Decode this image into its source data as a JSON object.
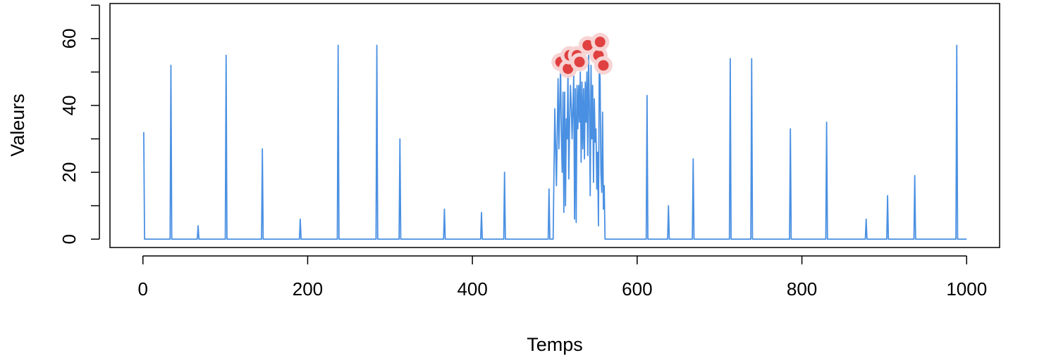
{
  "chart_data": {
    "type": "line",
    "title": "",
    "xlabel": "Temps",
    "ylabel": "Valeurs",
    "xlim": [
      -40,
      1040
    ],
    "ylim": [
      -2.5,
      70.5
    ],
    "xticks": [
      0,
      200,
      400,
      600,
      800,
      1000
    ],
    "yticks": [
      0,
      20,
      40,
      60
    ],
    "yminor_ticks": [
      10,
      30,
      50,
      70
    ],
    "grid": false,
    "colors": {
      "line": "#4A90E2",
      "marker": "#E04040",
      "marker_halo": "#F7D3D3"
    },
    "series": [
      {
        "points": [
          [
            1,
            32
          ],
          [
            2,
            0
          ],
          [
            33,
            0
          ],
          [
            34,
            52
          ],
          [
            35,
            0
          ],
          [
            66,
            0
          ],
          [
            67,
            4
          ],
          [
            68,
            0
          ],
          [
            100,
            0
          ],
          [
            101,
            55
          ],
          [
            102,
            0
          ],
          [
            144,
            0
          ],
          [
            145,
            27
          ],
          [
            146,
            0
          ],
          [
            190,
            0
          ],
          [
            191,
            6
          ],
          [
            192,
            0
          ],
          [
            236,
            0
          ],
          [
            237,
            58
          ],
          [
            238,
            0
          ],
          [
            283,
            0
          ],
          [
            284,
            58
          ],
          [
            285,
            0
          ],
          [
            311,
            0
          ],
          [
            312,
            30
          ],
          [
            313,
            0
          ],
          [
            365,
            0
          ],
          [
            366,
            9
          ],
          [
            367,
            0
          ],
          [
            410,
            0
          ],
          [
            411,
            8
          ],
          [
            412,
            0
          ],
          [
            438,
            0
          ],
          [
            439,
            20
          ],
          [
            440,
            0
          ],
          [
            492,
            0
          ],
          [
            493,
            15
          ],
          [
            494,
            0
          ],
          [
            498,
            0
          ],
          [
            500,
            39
          ],
          [
            502,
            16
          ],
          [
            504,
            48
          ],
          [
            505,
            27
          ],
          [
            507,
            52
          ],
          [
            508,
            30
          ],
          [
            509,
            20
          ],
          [
            510,
            44
          ],
          [
            511,
            8
          ],
          [
            512,
            44
          ],
          [
            513,
            10
          ],
          [
            514,
            36
          ],
          [
            515,
            30
          ],
          [
            516,
            50
          ],
          [
            517,
            18
          ],
          [
            518,
            35
          ],
          [
            519,
            46
          ],
          [
            520,
            40
          ],
          [
            521,
            30
          ],
          [
            523,
            49
          ],
          [
            524,
            6
          ],
          [
            525,
            45
          ],
          [
            526,
            5
          ],
          [
            527,
            46
          ],
          [
            528,
            33
          ],
          [
            529,
            46
          ],
          [
            530,
            35
          ],
          [
            531,
            50
          ],
          [
            532,
            23
          ],
          [
            533,
            47
          ],
          [
            534,
            27
          ],
          [
            535,
            45
          ],
          [
            536,
            24
          ],
          [
            537,
            47
          ],
          [
            538,
            35
          ],
          [
            539,
            50
          ],
          [
            540,
            25
          ],
          [
            541,
            55
          ],
          [
            542,
            40
          ],
          [
            543,
            13
          ],
          [
            544,
            52
          ],
          [
            545,
            30
          ],
          [
            546,
            46
          ],
          [
            547,
            17
          ],
          [
            548,
            42
          ],
          [
            549,
            29
          ],
          [
            550,
            33
          ],
          [
            551,
            15
          ],
          [
            552,
            26
          ],
          [
            553,
            4
          ],
          [
            554,
            52
          ],
          [
            555,
            48
          ],
          [
            556,
            20
          ],
          [
            557,
            14
          ],
          [
            558,
            38
          ],
          [
            559,
            9
          ],
          [
            560,
            16
          ],
          [
            561,
            0
          ],
          [
            611,
            0
          ],
          [
            612,
            43
          ],
          [
            613,
            0
          ],
          [
            637,
            0
          ],
          [
            638,
            10
          ],
          [
            639,
            0
          ],
          [
            667,
            0
          ],
          [
            668,
            24
          ],
          [
            669,
            0
          ],
          [
            712,
            0
          ],
          [
            713,
            54
          ],
          [
            714,
            0
          ],
          [
            738,
            0
          ],
          [
            739,
            54
          ],
          [
            740,
            0
          ],
          [
            785,
            0
          ],
          [
            786,
            33
          ],
          [
            787,
            0
          ],
          [
            829,
            0
          ],
          [
            830,
            35
          ],
          [
            831,
            0
          ],
          [
            877,
            0
          ],
          [
            878,
            6
          ],
          [
            879,
            0
          ],
          [
            903,
            0
          ],
          [
            904,
            13
          ],
          [
            905,
            0
          ],
          [
            936,
            0
          ],
          [
            937,
            19
          ],
          [
            938,
            0
          ],
          [
            987,
            0
          ],
          [
            988,
            58
          ],
          [
            989,
            0
          ],
          [
            1000,
            0
          ]
        ]
      }
    ],
    "highlight_points": [
      [
        507,
        53
      ],
      [
        516,
        51
      ],
      [
        518,
        55
      ],
      [
        527,
        55
      ],
      [
        530,
        53
      ],
      [
        540,
        58
      ],
      [
        553,
        55
      ],
      [
        555,
        59
      ],
      [
        559,
        52
      ]
    ]
  }
}
